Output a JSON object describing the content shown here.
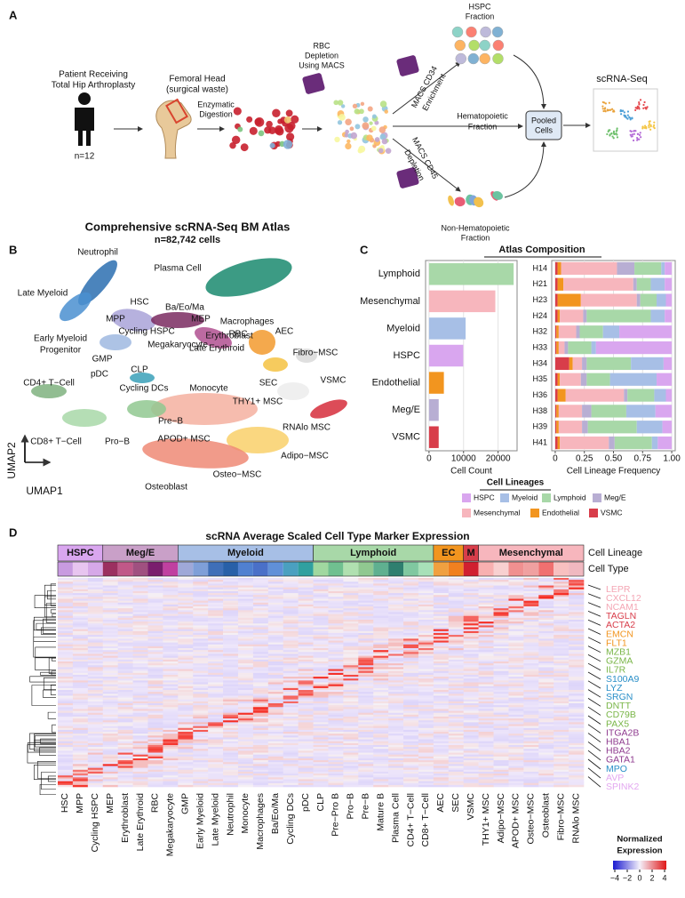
{
  "panel_labels": [
    "A",
    "B",
    "C",
    "D"
  ],
  "panel_a": {
    "patient": [
      "Patient Receiving",
      "Total Hip Arthroplasty"
    ],
    "n": "n=12",
    "femoral": [
      "Femoral Head",
      "(surgical waste)"
    ],
    "digestion": [
      "Enzymatic",
      "Digestion"
    ],
    "rbc": [
      "RBC",
      "Depletion",
      "Using MACS"
    ],
    "hspc": [
      "HSPC",
      "Fraction"
    ],
    "cd34": [
      "MACS CD34",
      "Enrichment"
    ],
    "hemato": [
      "Hematopoietic",
      "Fraction"
    ],
    "cd45": [
      "MACS CD45",
      "Depletion"
    ],
    "nonhemato": [
      "Non-Hematopoietic",
      "Fraction"
    ],
    "pooled": [
      "Pooled",
      "Cells"
    ],
    "scrna": "scRNA-Seq"
  },
  "panel_b": {
    "title": "Comprehensive scRNA-Seq BM Atlas",
    "subtitle": "n=82,742 cells",
    "clusters": [
      "Neutrophil",
      "Plasma Cell",
      "Late Myeloid",
      "HSC",
      "Ba/Eo/Ma",
      "MEP",
      "Macrophages",
      "MPP",
      "RBC",
      "Cycling HSPC",
      "Erythroblast",
      "AEC",
      "Early Myeloid",
      "Progenitor",
      "Megakaryocyte",
      "Late Erythroid",
      "Fibro−MSC",
      "GMP",
      "CLP",
      "SEC",
      "VSMC",
      "pDC",
      "Cycling DCs",
      "Monocyte",
      "CD4+ T−Cell",
      "THY1+ MSC",
      "Pre−B",
      "RNAlo MSC",
      "CD8+ T−Cell",
      "Pro−B",
      "APOD+ MSC",
      "Adipo−MSC",
      "Osteo−MSC",
      "Osteoblast"
    ],
    "x_axis": "UMAP1",
    "y_axis": "UMAP2"
  },
  "panel_c": {
    "title": "Atlas Composition"
  },
  "chart_data": [
    {
      "type": "bar",
      "orientation": "horizontal",
      "categories": [
        "Lymphoid",
        "Mesenchymal",
        "Myeloid",
        "HSPC",
        "Endothelial",
        "Meg/E",
        "VSMC"
      ],
      "values": [
        24500,
        19200,
        10600,
        9900,
        4300,
        2800,
        2800
      ],
      "colors": [
        "#a8d8a8",
        "#f7b6bd",
        "#a7bfe6",
        "#d9a6ef",
        "#f2951f",
        "#b8aed3",
        "#d83d4a"
      ],
      "xlabel": "Cell Count",
      "xlim": [
        -1000,
        25500
      ],
      "xticks": [
        0,
        10000,
        20000
      ],
      "grid": true
    },
    {
      "type": "stacked_bar",
      "orientation": "horizontal",
      "categories": [
        "H14",
        "H21",
        "H23",
        "H24",
        "H32",
        "H33",
        "H34",
        "H35",
        "H36",
        "H38",
        "H39",
        "H41"
      ],
      "series": [
        {
          "name": "HSPC",
          "color": "#d9a6ef",
          "values": [
            0.06,
            0.06,
            0.05,
            0.06,
            0.45,
            0.65,
            0.07,
            0.13,
            0.05,
            0.14,
            0.08,
            0.12
          ]
        },
        {
          "name": "Myeloid",
          "color": "#a7bfe6",
          "values": [
            0.03,
            0.12,
            0.08,
            0.12,
            0.14,
            0.04,
            0.28,
            0.4,
            0.1,
            0.25,
            0.22,
            0.05
          ]
        },
        {
          "name": "Lymphoid",
          "color": "#a8d8a8",
          "values": [
            0.23,
            0.12,
            0.14,
            0.55,
            0.2,
            0.2,
            0.38,
            0.2,
            0.23,
            0.3,
            0.42,
            0.32
          ]
        },
        {
          "name": "Meg/E",
          "color": "#b8aed3",
          "values": [
            0.15,
            0.03,
            0.03,
            0.03,
            0.03,
            0.03,
            0.04,
            0.05,
            0.03,
            0.08,
            0.05,
            0.05
          ]
        },
        {
          "name": "Mesenchymal",
          "color": "#f7b6bd",
          "values": [
            0.48,
            0.6,
            0.48,
            0.2,
            0.15,
            0.05,
            0.08,
            0.18,
            0.5,
            0.2,
            0.2,
            0.42
          ]
        },
        {
          "name": "Endothelial",
          "color": "#f2951f",
          "values": [
            0.03,
            0.05,
            0.2,
            0.02,
            0.02,
            0.02,
            0.03,
            0.02,
            0.07,
            0.02,
            0.02,
            0.02
          ]
        },
        {
          "name": "VSMC",
          "color": "#d83d4a",
          "values": [
            0.02,
            0.02,
            0.02,
            0.02,
            0.01,
            0.01,
            0.12,
            0.02,
            0.02,
            0.01,
            0.01,
            0.02
          ]
        }
      ],
      "xlabel": "Cell Lineage Frequency",
      "xlim": [
        -0.03,
        1.03
      ],
      "xticks": [
        0,
        0.25,
        {
          "value": 0.5,
          "label": "0.50"
        },
        0.75,
        {
          "value": 1,
          "label": "1.00"
        }
      ],
      "legend_title": "Cell Lineages",
      "grid": true
    }
  ],
  "panel_d": {
    "title": "scRNA Average Scaled Cell Type Marker Expression",
    "row_labels": [
      "Cell Lineage",
      "Cell Type"
    ],
    "lineages": [
      {
        "name": "HSPC",
        "span": 3,
        "color": "#d9a6ef"
      },
      {
        "name": "Meg/E",
        "span": 5,
        "color": "#c9a0c8"
      },
      {
        "name": "Myeloid",
        "span": 9,
        "color": "#a7bfe6"
      },
      {
        "name": "Lymphoid",
        "span": 8,
        "color": "#a8d8a8"
      },
      {
        "name": "EC",
        "span": 2,
        "color": "#f2951f"
      },
      {
        "name": "M",
        "span": 1,
        "color": "#d83d4a"
      },
      {
        "name": "Mesenchymal",
        "span": 7,
        "color": "#f7b6bd"
      }
    ],
    "columns": [
      "HSC",
      "MPP",
      "Cycling HSPC",
      "MEP",
      "Erythroblast",
      "Late Erythroid",
      "RBC",
      "Megakaryocyte",
      "GMP",
      "Early Myeloid",
      "Late Myeloid",
      "Neutrophil",
      "Monocyte",
      "Macrophages",
      "Ba/Eo/Ma",
      "Cycling DCs",
      "pDC",
      "CLP",
      "Pre−Pro B",
      "Pro−B",
      "Pre−B",
      "Mature B",
      "Plasma Cell",
      "CD4+ T−Cell",
      "CD8+ T−Cell",
      "AEC",
      "SEC",
      "VSMC",
      "THY1+ MSC",
      "Adipo−MSC",
      "APOD+ MSC",
      "Osteo−MSC",
      "Osteoblast",
      "Fibro−MSC",
      "RNAlo MSC"
    ],
    "column_colors": [
      "#c89be0",
      "#e8c5f0",
      "#d6a8e8",
      "#9b3060",
      "#c05888",
      "#a05080",
      "#7a1e6e",
      "#c040a0",
      "#9fa8d8",
      "#7f9fd8",
      "#3f6fb8",
      "#2860a8",
      "#5080d0",
      "#4a70c8",
      "#6090d8",
      "#4aa0c0",
      "#30a0a0",
      "#a0d8a0",
      "#70c090",
      "#b0e0b0",
      "#90c890",
      "#5fb090",
      "#2f7f6f",
      "#80c8a0",
      "#a8e0b8",
      "#f0a040",
      "#f08020",
      "#d02030",
      "#f8b0b0",
      "#f8d0d0",
      "#f09090",
      "#f0a0a0",
      "#f07070",
      "#f8c0c0",
      "#f0b8c0"
    ],
    "genes": [
      {
        "name": "LEPR",
        "color": "#f4a6b4"
      },
      {
        "name": "CXCL12",
        "color": "#f4a6b4"
      },
      {
        "name": "NCAM1",
        "color": "#f4a6b4"
      },
      {
        "name": "TAGLN",
        "color": "#d83d4a"
      },
      {
        "name": "ACTA2",
        "color": "#d83d4a"
      },
      {
        "name": "EMCN",
        "color": "#f2951f"
      },
      {
        "name": "FLT1",
        "color": "#f2951f"
      },
      {
        "name": "MZB1",
        "color": "#7ab648"
      },
      {
        "name": "GZMA",
        "color": "#7ab648"
      },
      {
        "name": "IL7R",
        "color": "#7ab648"
      },
      {
        "name": "S100A9",
        "color": "#2a8fc8"
      },
      {
        "name": "LYZ",
        "color": "#2a8fc8"
      },
      {
        "name": "SRGN",
        "color": "#2a8fc8"
      },
      {
        "name": "DNTT",
        "color": "#7ab648"
      },
      {
        "name": "CD79B",
        "color": "#7ab648"
      },
      {
        "name": "PAX5",
        "color": "#7ab648"
      },
      {
        "name": "ITGA2B",
        "color": "#8e3a8e"
      },
      {
        "name": "HBA1",
        "color": "#8e3a8e"
      },
      {
        "name": "HBA2",
        "color": "#8e3a8e"
      },
      {
        "name": "GATA1",
        "color": "#8e3a8e"
      },
      {
        "name": "MPO",
        "color": "#2a8fc8"
      },
      {
        "name": "AVP",
        "color": "#e3a8f0"
      },
      {
        "name": "SPINK2",
        "color": "#e3a8f0"
      }
    ],
    "legend_title": [
      "Normalized",
      "Expression"
    ],
    "legend_lim": [
      -4,
      4
    ],
    "legend_ticks": [
      {
        "value": -4,
        "label": "−4"
      },
      {
        "value": -2,
        "label": "−2"
      },
      0,
      2,
      4
    ]
  }
}
